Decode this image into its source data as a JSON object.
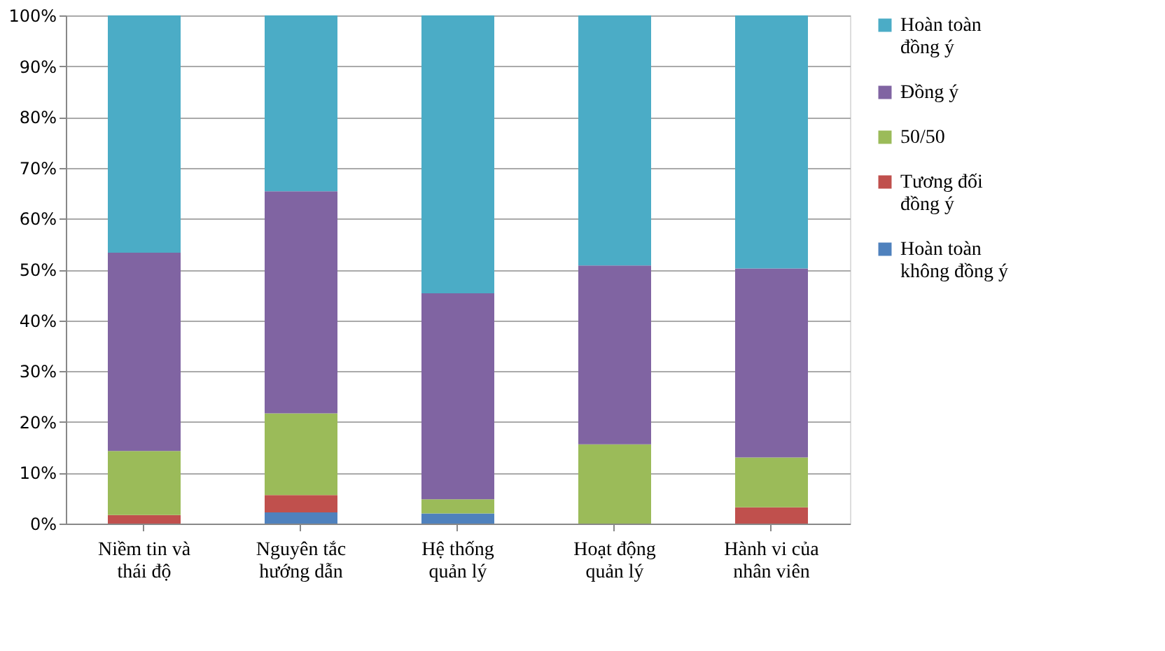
{
  "chart_data": {
    "type": "bar",
    "stacked": true,
    "categories": [
      "Niềm tin và thái độ",
      "Nguyên tắc hướng dẫn",
      "Hệ thống quản lý",
      "Hoạt động quản lý",
      "Hành vi của nhân viên"
    ],
    "series": [
      {
        "name": "Hoàn toàn không đồng ý",
        "color": "#4f81bd",
        "values": [
          0,
          2.2,
          2.0,
          0,
          0
        ]
      },
      {
        "name": "Tương đối đồng ý",
        "color": "#c0504d",
        "values": [
          1.7,
          3.4,
          0,
          0,
          3.2
        ]
      },
      {
        "name": "50/50",
        "color": "#9bbb59",
        "values": [
          12.6,
          16.1,
          2.8,
          15.6,
          9.8
        ]
      },
      {
        "name": "Đồng ý",
        "color": "#8064a2",
        "values": [
          39.0,
          43.7,
          40.5,
          35.2,
          37.2
        ]
      },
      {
        "name": "Hoàn toàn đồng ý",
        "color": "#4bacc6",
        "values": [
          46.7,
          34.6,
          54.7,
          49.2,
          49.8
        ]
      }
    ],
    "ylim": [
      0,
      100
    ],
    "yticks": [
      {
        "value": 0,
        "label": "0%"
      },
      {
        "value": 10,
        "label": "10%"
      },
      {
        "value": 20,
        "label": "20%"
      },
      {
        "value": 30,
        "label": "30%"
      },
      {
        "value": 40,
        "label": "40%"
      },
      {
        "value": 50,
        "label": "50%"
      },
      {
        "value": 60,
        "label": "60%"
      },
      {
        "value": 70,
        "label": "70%"
      },
      {
        "value": 80,
        "label": "80%"
      },
      {
        "value": 90,
        "label": "90%"
      },
      {
        "value": 100,
        "label": "100%"
      }
    ],
    "grid": "y",
    "legend": "right"
  }
}
